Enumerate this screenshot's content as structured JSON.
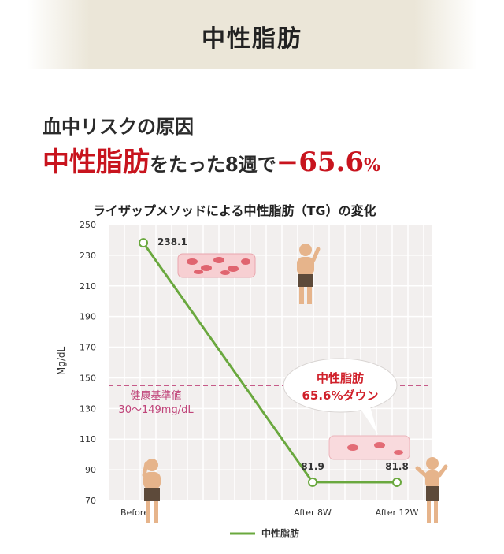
{
  "banner": {
    "title": "中性脂肪"
  },
  "subheading": "血中リスクの原因",
  "headline": {
    "red_text": "中性脂肪",
    "middle_text": "をたった8週で",
    "value_text": "−65.6",
    "unit_text": "%"
  },
  "chart_data": {
    "type": "line",
    "title": "ライザップメソッドによる中性脂肪（TG）の変化",
    "ylabel": "Mg/dL",
    "xlabel": "",
    "categories": [
      "Before",
      "After 8W",
      "After 12W"
    ],
    "series": [
      {
        "name": "中性脂肪",
        "color": "#6aa83e",
        "values": [
          238.1,
          81.9,
          81.8
        ]
      }
    ],
    "ylim": [
      70,
      250
    ],
    "yticks": [
      70,
      90,
      110,
      130,
      150,
      170,
      190,
      210,
      230,
      250
    ],
    "data_labels": [
      "238.1",
      "81.9",
      "81.8"
    ],
    "reference_line": {
      "value": 145,
      "color": "#c0457a"
    },
    "reference_label": {
      "line1": "健康基準値",
      "line2": "30〜149mg/dL"
    },
    "callout": {
      "line1": "中性脂肪",
      "line2": "65.6%ダウン"
    },
    "grid": true,
    "legend": {
      "position": "bottom-center",
      "label": "中性脂肪"
    }
  }
}
